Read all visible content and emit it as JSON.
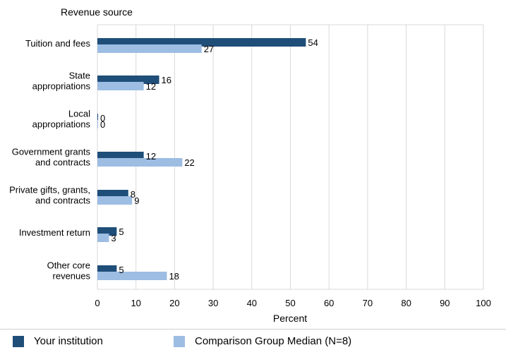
{
  "chart_data": {
    "type": "bar",
    "orientation": "horizontal",
    "title": "Revenue source",
    "xlabel": "Percent",
    "ylabel": "Revenue source",
    "xlim": [
      0,
      100
    ],
    "xticks": [
      0,
      10,
      20,
      30,
      40,
      50,
      60,
      70,
      80,
      90,
      100
    ],
    "grid": true,
    "categories": [
      [
        "Tuition and fees"
      ],
      [
        "State",
        "appropriations"
      ],
      [
        "Local",
        "appropriations"
      ],
      [
        "Government grants",
        "and contracts"
      ],
      [
        "Private gifts, grants,",
        "and contracts"
      ],
      [
        "Investment return"
      ],
      [
        "Other core",
        "revenues"
      ]
    ],
    "series": [
      {
        "name": "Your institution",
        "color": "#1f4e79",
        "values": [
          54,
          16,
          0,
          12,
          8,
          5,
          5
        ]
      },
      {
        "name": "Comparison Group Median (N=8)",
        "color": "#9dbde3",
        "values": [
          27,
          12,
          0,
          22,
          9,
          3,
          18
        ]
      }
    ],
    "legend_position": "bottom"
  }
}
